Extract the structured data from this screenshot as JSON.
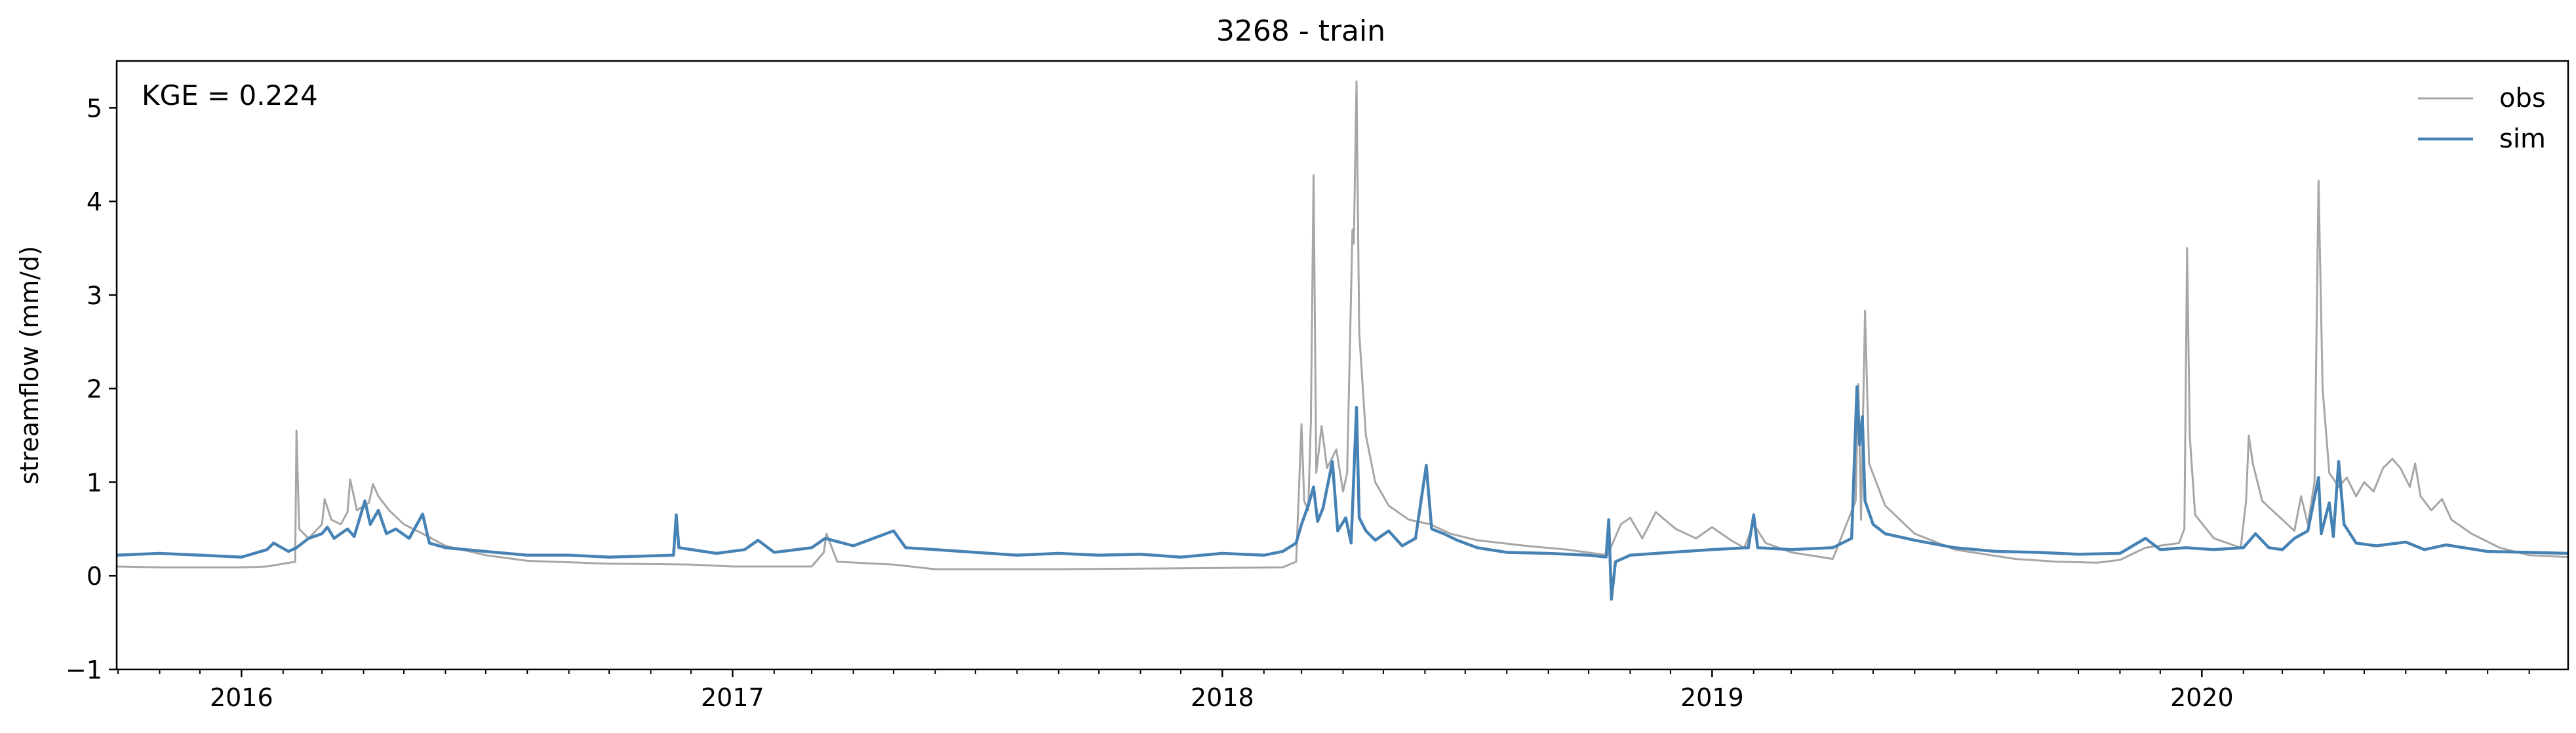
{
  "chart_data": {
    "type": "line",
    "title": "3268 - train",
    "ylabel": "streamflow (mm/d)",
    "xlabel": "",
    "annotation": "KGE = 0.224",
    "xlim": [
      "2015-09-30",
      "2020-09-30"
    ],
    "ylim": [
      -1,
      5.5
    ],
    "yticks": [
      -1,
      0,
      1,
      2,
      3,
      4,
      5
    ],
    "xticks": [
      "2016",
      "2017",
      "2018",
      "2019",
      "2020"
    ],
    "legend_position": "top-right",
    "grid": false,
    "series": [
      {
        "name": "obs",
        "color": "#a6a6a6",
        "points": [
          [
            "2015-09-30",
            0.1
          ],
          [
            "2015-11-01",
            0.09
          ],
          [
            "2016-01-01",
            0.09
          ],
          [
            "2016-01-20",
            0.1
          ],
          [
            "2016-02-10",
            0.15
          ],
          [
            "2016-02-11",
            1.55
          ],
          [
            "2016-02-13",
            0.5
          ],
          [
            "2016-02-20",
            0.4
          ],
          [
            "2016-03-01",
            0.55
          ],
          [
            "2016-03-03",
            0.82
          ],
          [
            "2016-03-08",
            0.6
          ],
          [
            "2016-03-15",
            0.55
          ],
          [
            "2016-03-20",
            0.68
          ],
          [
            "2016-03-22",
            1.03
          ],
          [
            "2016-03-27",
            0.7
          ],
          [
            "2016-04-05",
            0.78
          ],
          [
            "2016-04-08",
            0.98
          ],
          [
            "2016-04-12",
            0.85
          ],
          [
            "2016-04-20",
            0.7
          ],
          [
            "2016-05-01",
            0.55
          ],
          [
            "2016-05-15",
            0.45
          ],
          [
            "2016-06-01",
            0.32
          ],
          [
            "2016-07-01",
            0.22
          ],
          [
            "2016-08-01",
            0.16
          ],
          [
            "2016-10-01",
            0.13
          ],
          [
            "2016-12-01",
            0.12
          ],
          [
            "2017-01-01",
            0.1
          ],
          [
            "2017-03-01",
            0.1
          ],
          [
            "2017-03-10",
            0.25
          ],
          [
            "2017-03-12",
            0.45
          ],
          [
            "2017-03-20",
            0.15
          ],
          [
            "2017-05-01",
            0.12
          ],
          [
            "2017-06-01",
            0.07
          ],
          [
            "2017-09-01",
            0.07
          ],
          [
            "2017-12-01",
            0.08
          ],
          [
            "2018-02-15",
            0.09
          ],
          [
            "2018-02-25",
            0.15
          ],
          [
            "2018-03-01",
            1.62
          ],
          [
            "2018-03-03",
            0.8
          ],
          [
            "2018-03-06",
            0.7
          ],
          [
            "2018-03-08",
            1.65
          ],
          [
            "2018-03-10",
            4.28
          ],
          [
            "2018-03-12",
            1.1
          ],
          [
            "2018-03-16",
            1.6
          ],
          [
            "2018-03-20",
            1.15
          ],
          [
            "2018-03-27",
            1.35
          ],
          [
            "2018-04-01",
            0.9
          ],
          [
            "2018-04-04",
            1.1
          ],
          [
            "2018-04-08",
            3.7
          ],
          [
            "2018-04-09",
            3.55
          ],
          [
            "2018-04-11",
            5.28
          ],
          [
            "2018-04-13",
            2.6
          ],
          [
            "2018-04-18",
            1.5
          ],
          [
            "2018-04-25",
            1.0
          ],
          [
            "2018-05-05",
            0.75
          ],
          [
            "2018-05-20",
            0.6
          ],
          [
            "2018-06-05",
            0.55
          ],
          [
            "2018-06-20",
            0.45
          ],
          [
            "2018-07-10",
            0.38
          ],
          [
            "2018-08-15",
            0.32
          ],
          [
            "2018-09-15",
            0.28
          ],
          [
            "2018-10-15",
            0.22
          ],
          [
            "2018-10-25",
            0.55
          ],
          [
            "2018-11-01",
            0.62
          ],
          [
            "2018-11-10",
            0.4
          ],
          [
            "2018-11-20",
            0.68
          ],
          [
            "2018-12-05",
            0.5
          ],
          [
            "2018-12-20",
            0.4
          ],
          [
            "2019-01-01",
            0.52
          ],
          [
            "2019-01-15",
            0.38
          ],
          [
            "2019-01-25",
            0.3
          ],
          [
            "2019-02-01",
            0.55
          ],
          [
            "2019-02-10",
            0.35
          ],
          [
            "2019-03-01",
            0.25
          ],
          [
            "2019-04-01",
            0.18
          ],
          [
            "2019-04-18",
            0.8
          ],
          [
            "2019-04-20",
            2.05
          ],
          [
            "2019-04-22",
            0.6
          ],
          [
            "2019-04-25",
            2.83
          ],
          [
            "2019-04-28",
            1.2
          ],
          [
            "2019-05-10",
            0.75
          ],
          [
            "2019-06-01",
            0.45
          ],
          [
            "2019-07-01",
            0.28
          ],
          [
            "2019-08-15",
            0.18
          ],
          [
            "2019-09-15",
            0.15
          ],
          [
            "2019-10-15",
            0.14
          ],
          [
            "2019-11-01",
            0.17
          ],
          [
            "2019-11-20",
            0.3
          ],
          [
            "2019-12-15",
            0.35
          ],
          [
            "2019-12-19",
            0.5
          ],
          [
            "2019-12-21",
            3.5
          ],
          [
            "2019-12-23",
            1.5
          ],
          [
            "2019-12-27",
            0.65
          ],
          [
            "2020-01-10",
            0.4
          ],
          [
            "2020-01-30",
            0.3
          ],
          [
            "2020-02-03",
            0.8
          ],
          [
            "2020-02-05",
            1.5
          ],
          [
            "2020-02-08",
            1.2
          ],
          [
            "2020-02-15",
            0.8
          ],
          [
            "2020-03-01",
            0.6
          ],
          [
            "2020-03-10",
            0.48
          ],
          [
            "2020-03-15",
            0.85
          ],
          [
            "2020-03-20",
            0.55
          ],
          [
            "2020-03-25",
            1.0
          ],
          [
            "2020-03-28",
            4.22
          ],
          [
            "2020-03-31",
            2.0
          ],
          [
            "2020-04-05",
            1.1
          ],
          [
            "2020-04-12",
            0.95
          ],
          [
            "2020-04-18",
            1.05
          ],
          [
            "2020-04-25",
            0.85
          ],
          [
            "2020-05-01",
            1.0
          ],
          [
            "2020-05-08",
            0.9
          ],
          [
            "2020-05-15",
            1.15
          ],
          [
            "2020-05-22",
            1.25
          ],
          [
            "2020-05-28",
            1.15
          ],
          [
            "2020-06-04",
            0.95
          ],
          [
            "2020-06-08",
            1.2
          ],
          [
            "2020-06-12",
            0.85
          ],
          [
            "2020-06-20",
            0.7
          ],
          [
            "2020-06-28",
            0.82
          ],
          [
            "2020-07-05",
            0.6
          ],
          [
            "2020-07-20",
            0.45
          ],
          [
            "2020-08-10",
            0.3
          ],
          [
            "2020-09-01",
            0.22
          ],
          [
            "2020-09-30",
            0.2
          ]
        ]
      },
      {
        "name": "sim",
        "color": "#4682b4",
        "points": [
          [
            "2015-09-30",
            0.22
          ],
          [
            "2015-11-01",
            0.24
          ],
          [
            "2015-12-01",
            0.22
          ],
          [
            "2016-01-01",
            0.2
          ],
          [
            "2016-01-20",
            0.28
          ],
          [
            "2016-01-25",
            0.35
          ],
          [
            "2016-02-05",
            0.26
          ],
          [
            "2016-02-11",
            0.3
          ],
          [
            "2016-02-20",
            0.4
          ],
          [
            "2016-03-01",
            0.45
          ],
          [
            "2016-03-05",
            0.52
          ],
          [
            "2016-03-10",
            0.4
          ],
          [
            "2016-03-20",
            0.5
          ],
          [
            "2016-03-25",
            0.42
          ],
          [
            "2016-04-02",
            0.8
          ],
          [
            "2016-04-06",
            0.55
          ],
          [
            "2016-04-12",
            0.7
          ],
          [
            "2016-04-18",
            0.45
          ],
          [
            "2016-04-25",
            0.5
          ],
          [
            "2016-05-05",
            0.4
          ],
          [
            "2016-05-15",
            0.66
          ],
          [
            "2016-05-20",
            0.35
          ],
          [
            "2016-06-01",
            0.3
          ],
          [
            "2016-07-01",
            0.26
          ],
          [
            "2016-08-01",
            0.22
          ],
          [
            "2016-09-01",
            0.22
          ],
          [
            "2016-10-01",
            0.2
          ],
          [
            "2016-11-18",
            0.22
          ],
          [
            "2016-11-20",
            0.65
          ],
          [
            "2016-11-22",
            0.3
          ],
          [
            "2016-12-20",
            0.24
          ],
          [
            "2017-01-10",
            0.28
          ],
          [
            "2017-01-20",
            0.38
          ],
          [
            "2017-02-01",
            0.25
          ],
          [
            "2017-03-01",
            0.3
          ],
          [
            "2017-03-11",
            0.4
          ],
          [
            "2017-04-01",
            0.32
          ],
          [
            "2017-05-01",
            0.48
          ],
          [
            "2017-05-10",
            0.3
          ],
          [
            "2017-06-01",
            0.28
          ],
          [
            "2017-07-01",
            0.25
          ],
          [
            "2017-08-01",
            0.22
          ],
          [
            "2017-09-01",
            0.24
          ],
          [
            "2017-10-01",
            0.22
          ],
          [
            "2017-11-01",
            0.23
          ],
          [
            "2017-12-01",
            0.2
          ],
          [
            "2018-01-01",
            0.24
          ],
          [
            "2018-02-01",
            0.22
          ],
          [
            "2018-02-15",
            0.26
          ],
          [
            "2018-02-25",
            0.35
          ],
          [
            "2018-03-01",
            0.55
          ],
          [
            "2018-03-06",
            0.75
          ],
          [
            "2018-03-10",
            0.95
          ],
          [
            "2018-03-13",
            0.58
          ],
          [
            "2018-03-17",
            0.72
          ],
          [
            "2018-03-24",
            1.22
          ],
          [
            "2018-03-28",
            0.48
          ],
          [
            "2018-04-03",
            0.62
          ],
          [
            "2018-04-07",
            0.35
          ],
          [
            "2018-04-11",
            1.8
          ],
          [
            "2018-04-13",
            0.62
          ],
          [
            "2018-04-18",
            0.48
          ],
          [
            "2018-04-25",
            0.38
          ],
          [
            "2018-05-05",
            0.48
          ],
          [
            "2018-05-15",
            0.32
          ],
          [
            "2018-05-25",
            0.4
          ],
          [
            "2018-06-02",
            1.18
          ],
          [
            "2018-06-06",
            0.5
          ],
          [
            "2018-06-15",
            0.45
          ],
          [
            "2018-06-25",
            0.38
          ],
          [
            "2018-07-10",
            0.3
          ],
          [
            "2018-08-01",
            0.25
          ],
          [
            "2018-09-01",
            0.24
          ],
          [
            "2018-10-01",
            0.22
          ],
          [
            "2018-10-14",
            0.2
          ],
          [
            "2018-10-16",
            0.6
          ],
          [
            "2018-10-18",
            -0.25
          ],
          [
            "2018-10-21",
            0.15
          ],
          [
            "2018-11-01",
            0.22
          ],
          [
            "2018-12-01",
            0.25
          ],
          [
            "2019-01-01",
            0.28
          ],
          [
            "2019-01-28",
            0.3
          ],
          [
            "2019-02-01",
            0.65
          ],
          [
            "2019-02-04",
            0.3
          ],
          [
            "2019-03-01",
            0.28
          ],
          [
            "2019-04-01",
            0.3
          ],
          [
            "2019-04-15",
            0.4
          ],
          [
            "2019-04-19",
            2.02
          ],
          [
            "2019-04-21",
            1.4
          ],
          [
            "2019-04-23",
            1.7
          ],
          [
            "2019-04-25",
            0.8
          ],
          [
            "2019-05-01",
            0.55
          ],
          [
            "2019-05-10",
            0.45
          ],
          [
            "2019-06-01",
            0.38
          ],
          [
            "2019-07-01",
            0.3
          ],
          [
            "2019-08-01",
            0.26
          ],
          [
            "2019-09-01",
            0.25
          ],
          [
            "2019-10-01",
            0.23
          ],
          [
            "2019-11-01",
            0.24
          ],
          [
            "2019-11-20",
            0.4
          ],
          [
            "2019-12-01",
            0.28
          ],
          [
            "2019-12-20",
            0.3
          ],
          [
            "2020-01-10",
            0.28
          ],
          [
            "2020-02-01",
            0.3
          ],
          [
            "2020-02-10",
            0.45
          ],
          [
            "2020-02-20",
            0.3
          ],
          [
            "2020-03-01",
            0.28
          ],
          [
            "2020-03-10",
            0.4
          ],
          [
            "2020-03-20",
            0.48
          ],
          [
            "2020-03-28",
            1.05
          ],
          [
            "2020-03-30",
            0.45
          ],
          [
            "2020-04-05",
            0.78
          ],
          [
            "2020-04-08",
            0.42
          ],
          [
            "2020-04-12",
            1.22
          ],
          [
            "2020-04-16",
            0.55
          ],
          [
            "2020-04-25",
            0.35
          ],
          [
            "2020-05-10",
            0.32
          ],
          [
            "2020-06-01",
            0.36
          ],
          [
            "2020-06-15",
            0.28
          ],
          [
            "2020-07-01",
            0.33
          ],
          [
            "2020-08-01",
            0.26
          ],
          [
            "2020-09-01",
            0.25
          ],
          [
            "2020-09-30",
            0.24
          ]
        ]
      }
    ]
  }
}
